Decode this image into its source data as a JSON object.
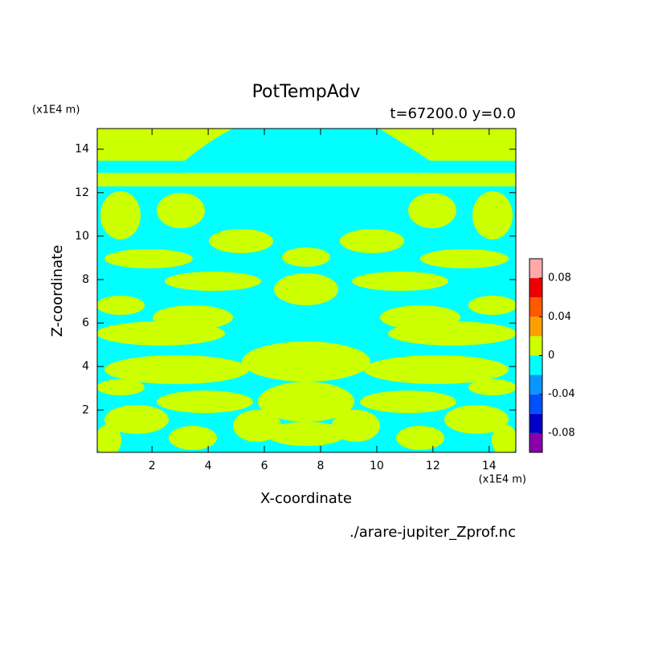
{
  "chart_data": {
    "type": "contour",
    "title": "PotTempAdv",
    "subtitle": "t=67200.0 y=0.0",
    "x_label": "X-coordinate",
    "y_label": "Z-coordinate",
    "x_unit": "(x1E4 m)",
    "y_unit": "(x1E4 m)",
    "source": "./arare-jupiter_Zprof.nc",
    "xlim": [
      0.05,
      14.95
    ],
    "ylim": [
      0.05,
      14.95
    ],
    "xticks": [
      2,
      4,
      6,
      8,
      10,
      12,
      14
    ],
    "yticks": [
      2,
      4,
      6,
      8,
      10,
      12,
      14
    ],
    "colorbar": {
      "levels": [
        -0.1,
        -0.08,
        -0.06,
        -0.04,
        -0.02,
        0,
        0.02,
        0.04,
        0.06,
        0.08,
        0.1
      ],
      "colors": [
        "#8a00a8",
        "#0000c8",
        "#0050ff",
        "#0a96ff",
        "#00ffff",
        "#ccff00",
        "#ffa000",
        "#ff5a00",
        "#ee0000",
        "#ffaaaa"
      ],
      "ticks": [
        -0.08,
        -0.04,
        0,
        0.04,
        0.08
      ]
    }
  }
}
